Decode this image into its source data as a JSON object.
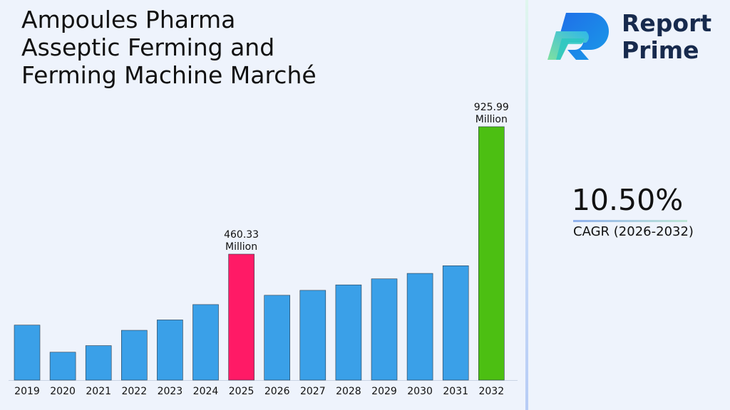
{
  "title_lines": [
    "Ampoules Pharma",
    "Asseptic Ferming and",
    "Ferming Machine Marché"
  ],
  "brand": {
    "line1": "Report",
    "line2": "Prime"
  },
  "cagr": {
    "value": "10.50%",
    "label": "CAGR (2026-2032)"
  },
  "chart_data": {
    "type": "bar",
    "categories": [
      "2019",
      "2020",
      "2021",
      "2022",
      "2023",
      "2024",
      "2025",
      "2026",
      "2027",
      "2028",
      "2029",
      "2030",
      "2031",
      "2032"
    ],
    "values": [
      201,
      102,
      126,
      182,
      220,
      276,
      460.33,
      310,
      328,
      348,
      370,
      390,
      418,
      925.99
    ],
    "bar_colors": [
      "#3aa0e8",
      "#3aa0e8",
      "#3aa0e8",
      "#3aa0e8",
      "#3aa0e8",
      "#3aa0e8",
      "#ff1a66",
      "#3aa0e8",
      "#3aa0e8",
      "#3aa0e8",
      "#3aa0e8",
      "#3aa0e8",
      "#3aa0e8",
      "#4cbf12"
    ],
    "annotations": [
      {
        "category": "2025",
        "value": "460.33",
        "unit": "Million"
      },
      {
        "category": "2032",
        "value": "925.99",
        "unit": "Million"
      }
    ],
    "scale_note": "2025 and 2032 bars drawn at reported values; other bars estimated relative to axis"
  }
}
